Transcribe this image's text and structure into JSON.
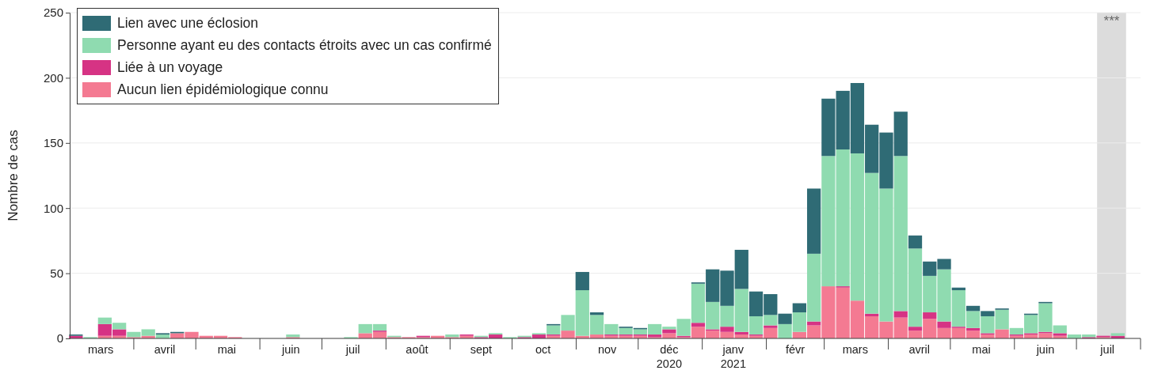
{
  "chart_data": {
    "type": "bar",
    "stacked": true,
    "ylabel": "Nombre de cas",
    "x": [
      "2020-03-04",
      "2020-03-11",
      "2020-03-18",
      "2020-03-25",
      "2020-04-01",
      "2020-04-08",
      "2020-04-15",
      "2020-04-22",
      "2020-04-29",
      "2020-05-06",
      "2020-05-13",
      "2020-05-20",
      "2020-05-27",
      "2020-06-03",
      "2020-06-10",
      "2020-06-17",
      "2020-06-24",
      "2020-07-01",
      "2020-07-08",
      "2020-07-15",
      "2020-07-22",
      "2020-07-29",
      "2020-08-05",
      "2020-08-12",
      "2020-08-19",
      "2020-08-26",
      "2020-09-02",
      "2020-09-09",
      "2020-09-16",
      "2020-09-23",
      "2020-09-30",
      "2020-10-07",
      "2020-10-14",
      "2020-10-21",
      "2020-10-28",
      "2020-11-04",
      "2020-11-11",
      "2020-11-18",
      "2020-11-25",
      "2020-12-02",
      "2020-12-09",
      "2020-12-16",
      "2020-12-23",
      "2020-12-30",
      "2021-01-06",
      "2021-01-13",
      "2021-01-20",
      "2021-01-27",
      "2021-02-03",
      "2021-02-10",
      "2021-02-17",
      "2021-02-24",
      "2021-03-03",
      "2021-03-10",
      "2021-03-17",
      "2021-03-24",
      "2021-03-31",
      "2021-04-07",
      "2021-04-14",
      "2021-04-21",
      "2021-04-28",
      "2021-05-05",
      "2021-05-12",
      "2021-05-19",
      "2021-05-26",
      "2021-06-02",
      "2021-06-09",
      "2021-06-16",
      "2021-06-23",
      "2021-06-30",
      "2021-07-07",
      "2021-07-14",
      "2021-07-21"
    ],
    "series": [
      {
        "name": "Aucun lien épidémiologique connu",
        "color": "#f47a92",
        "values": [
          0,
          0,
          2,
          2,
          1,
          2,
          0,
          4,
          5,
          2,
          2,
          1,
          0,
          0,
          0,
          1,
          0,
          0,
          0,
          0,
          4,
          5,
          1,
          1,
          1,
          2,
          1,
          2,
          0,
          0,
          0,
          0,
          0,
          2,
          6,
          2,
          3,
          2,
          2,
          2,
          1,
          4,
          1,
          9,
          6,
          5,
          3,
          2,
          8,
          0,
          5,
          10,
          40,
          39,
          29,
          17,
          13,
          16,
          6,
          15,
          8,
          8,
          6,
          3,
          7,
          2,
          3,
          4,
          2,
          0,
          0,
          1,
          0
        ]
      },
      {
        "name": "Liée à un voyage",
        "color": "#d63384",
        "values": [
          2,
          0,
          9,
          5,
          0,
          0,
          0,
          0,
          0,
          0,
          0,
          0,
          0,
          0,
          0,
          0,
          0,
          0,
          0,
          0,
          0,
          1,
          0,
          0,
          1,
          0,
          0,
          1,
          1,
          3,
          0,
          1,
          3,
          1,
          0,
          0,
          0,
          1,
          1,
          1,
          2,
          3,
          1,
          3,
          1,
          4,
          2,
          1,
          2,
          0,
          0,
          3,
          0,
          1,
          0,
          2,
          0,
          5,
          3,
          5,
          5,
          1,
          2,
          1,
          0,
          1,
          1,
          1,
          2,
          0,
          1,
          1,
          2
        ]
      },
      {
        "name": "Personne ayant eu des contacts étroits avec un cas confirmé",
        "color": "#8fdbb0",
        "values": [
          0,
          1,
          5,
          5,
          4,
          5,
          3,
          0,
          0,
          0,
          0,
          0,
          0,
          0,
          0,
          2,
          0,
          0,
          0,
          1,
          7,
          5,
          1,
          0,
          0,
          0,
          2,
          0,
          1,
          1,
          1,
          1,
          1,
          7,
          12,
          35,
          15,
          8,
          5,
          4,
          8,
          2,
          13,
          30,
          21,
          16,
          33,
          14,
          8,
          11,
          15,
          52,
          100,
          105,
          113,
          108,
          102,
          119,
          60,
          28,
          40,
          28,
          13,
          13,
          15,
          5,
          14,
          22,
          6,
          3,
          2,
          0,
          2
        ]
      },
      {
        "name": "Lien avec une éclosion",
        "color": "#2f6b75",
        "values": [
          1,
          0,
          0,
          0,
          0,
          0,
          1,
          1,
          0,
          0,
          0,
          0,
          0,
          0,
          0,
          0,
          0,
          0,
          0,
          0,
          0,
          0,
          0,
          0,
          0,
          0,
          0,
          0,
          0,
          0,
          0,
          0,
          0,
          1,
          0,
          14,
          2,
          0,
          1,
          1,
          0,
          0,
          0,
          1,
          25,
          27,
          30,
          19,
          16,
          8,
          7,
          50,
          44,
          45,
          54,
          37,
          43,
          34,
          10,
          11,
          8,
          2,
          4,
          4,
          1,
          0,
          1,
          1,
          0,
          0,
          0,
          0,
          0
        ]
      }
    ],
    "xlim": [
      "2020-03-01",
      "2021-08-01"
    ],
    "xticks": [
      {
        "value": "2020-03-16",
        "label": "mars"
      },
      {
        "value": "2020-04-01",
        "label": null
      },
      {
        "value": "2020-04-16",
        "label": "avril"
      },
      {
        "value": "2020-05-01",
        "label": null
      },
      {
        "value": "2020-05-16",
        "label": "mai"
      },
      {
        "value": "2020-06-01",
        "label": null
      },
      {
        "value": "2020-06-16",
        "label": "juin"
      },
      {
        "value": "2020-07-01",
        "label": null
      },
      {
        "value": "2020-07-16",
        "label": "juil"
      },
      {
        "value": "2020-08-01",
        "label": null
      },
      {
        "value": "2020-08-16",
        "label": "août"
      },
      {
        "value": "2020-09-01",
        "label": null
      },
      {
        "value": "2020-09-16",
        "label": "sept"
      },
      {
        "value": "2020-10-01",
        "label": null
      },
      {
        "value": "2020-10-16",
        "label": "oct"
      },
      {
        "value": "2020-11-01",
        "label": null
      },
      {
        "value": "2020-11-16",
        "label": "nov"
      },
      {
        "value": "2020-12-01",
        "label": null
      },
      {
        "value": "2020-12-16",
        "label": "déc\n2020"
      },
      {
        "value": "2021-01-01",
        "label": null
      },
      {
        "value": "2021-01-16",
        "label": "janv\n2021"
      },
      {
        "value": "2021-02-01",
        "label": null
      },
      {
        "value": "2021-02-15",
        "label": "févr"
      },
      {
        "value": "2021-03-01",
        "label": null
      },
      {
        "value": "2021-03-16",
        "label": "mars"
      },
      {
        "value": "2021-04-01",
        "label": null
      },
      {
        "value": "2021-04-16",
        "label": "avril"
      },
      {
        "value": "2021-05-01",
        "label": null
      },
      {
        "value": "2021-05-16",
        "label": "mai"
      },
      {
        "value": "2021-06-01",
        "label": null
      },
      {
        "value": "2021-06-16",
        "label": "juin"
      },
      {
        "value": "2021-07-01",
        "label": null
      },
      {
        "value": "2021-07-16",
        "label": "juil"
      },
      {
        "value": "2021-08-01",
        "label": null
      }
    ],
    "ylim": [
      0,
      250
    ],
    "yticks": [
      0,
      50,
      100,
      150,
      200,
      250
    ],
    "grid": "y",
    "legend": "top left",
    "bands": [
      {
        "axis": "x",
        "from": "2021-07-11",
        "to": "2021-07-25",
        "label": "***",
        "color": "#dcdcdc"
      }
    ]
  }
}
